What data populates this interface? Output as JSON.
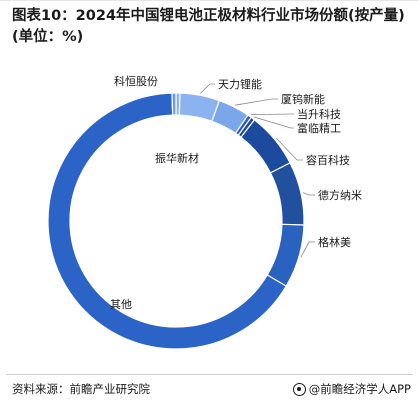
{
  "title": "图表10：2024年中国锂电池正极材料行业市场份额(按产量)(单位：%)",
  "source": "资料来源：前瞻产业研究院",
  "brand": "@前瞻经济学人APP",
  "brand_icon": "copyright-circle-icon",
  "chart_data": {
    "type": "pie",
    "style": "donut",
    "title": "图表10：2024年中国锂电池正极材料行业市场份额(按产量)(单位：%)",
    "labels": [
      "科恒股份",
      "天力锂能",
      "厦钨新能",
      "当升科技",
      "富临精工",
      "容百科技",
      "德方纳米",
      "格林美",
      "其他",
      "振华新材"
    ],
    "values": [
      0.5,
      5.0,
      4.0,
      0.5,
      0.5,
      7.0,
      8.0,
      8.0,
      66.0,
      0.5
    ],
    "colors": [
      "#8bb3ef",
      "#8bb3ef",
      "#7aa6ea",
      "#2a5fc1",
      "#1f4a99",
      "#1b4a9f",
      "#21509f",
      "#2a62c0",
      "#2b63c7",
      "#6f9be6"
    ],
    "legend": "none"
  }
}
